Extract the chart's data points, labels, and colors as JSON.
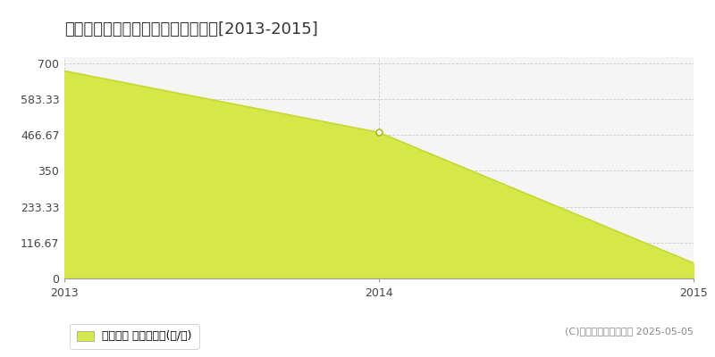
{
  "title": "度会郡大紀町大内山　林地価格推移[2013-2015]",
  "x": [
    2013,
    2014,
    2015
  ],
  "y": [
    675,
    475,
    50
  ],
  "yticks": [
    0,
    116.67,
    233.33,
    350,
    466.67,
    583.33,
    700
  ],
  "ytick_labels": [
    "0",
    "116.67",
    "233.33",
    "350",
    "466.67",
    "583.33",
    "700"
  ],
  "xlim": [
    2013,
    2015
  ],
  "ylim": [
    0,
    720
  ],
  "line_color": "#c8d832",
  "fill_color": "#d4e84a",
  "fill_alpha": 1.0,
  "marker_color": "#aabb22",
  "marker_face": "white",
  "marker_size": 5,
  "grid_color": "#cccccc",
  "bg_color": "#f5f5f5",
  "legend_label": "林地価格 平均坪単価(円/坪)",
  "copyright_text": "(C)土地価格ドットコム 2025-05-05",
  "title_fontsize": 13,
  "tick_fontsize": 9,
  "legend_fontsize": 9,
  "copyright_fontsize": 8,
  "xticks": [
    2013,
    2014,
    2015
  ]
}
